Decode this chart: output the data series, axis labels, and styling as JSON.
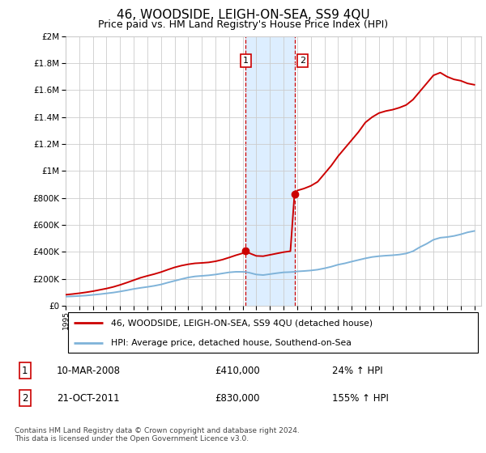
{
  "title": "46, WOODSIDE, LEIGH-ON-SEA, SS9 4QU",
  "subtitle": "Price paid vs. HM Land Registry's House Price Index (HPI)",
  "title_fontsize": 11,
  "subtitle_fontsize": 9,
  "legend_line1": "46, WOODSIDE, LEIGH-ON-SEA, SS9 4QU (detached house)",
  "legend_line2": "HPI: Average price, detached house, Southend-on-Sea",
  "footnote": "Contains HM Land Registry data © Crown copyright and database right 2024.\nThis data is licensed under the Open Government Licence v3.0.",
  "sale1_label": "10-MAR-2008",
  "sale2_label": "21-OCT-2011",
  "sale1_price": 410000,
  "sale2_price": 830000,
  "sale1_pct": "24% ↑ HPI",
  "sale2_pct": "155% ↑ HPI",
  "sale1_x": 2008.19,
  "sale2_x": 2011.8,
  "red_color": "#cc0000",
  "blue_color": "#7fb3d9",
  "shade_color": "#ddeeff",
  "grid_color": "#cccccc",
  "ylim_max": 2000000,
  "xmin": 1995,
  "xmax": 2025.5,
  "hpi_years": [
    1995,
    1995.5,
    1996,
    1996.5,
    1997,
    1997.5,
    1998,
    1998.5,
    1999,
    1999.5,
    2000,
    2000.5,
    2001,
    2001.5,
    2002,
    2002.5,
    2003,
    2003.5,
    2004,
    2004.5,
    2005,
    2005.5,
    2006,
    2006.5,
    2007,
    2007.5,
    2008,
    2008.19,
    2008.5,
    2009,
    2009.5,
    2010,
    2010.5,
    2011,
    2011.5,
    2011.8,
    2012,
    2012.5,
    2013,
    2013.5,
    2014,
    2014.5,
    2015,
    2015.5,
    2016,
    2016.5,
    2017,
    2017.5,
    2018,
    2018.5,
    2019,
    2019.5,
    2020,
    2020.5,
    2021,
    2021.5,
    2022,
    2022.5,
    2023,
    2023.5,
    2024,
    2024.5,
    2025
  ],
  "hpi_vals": [
    68000,
    70000,
    73000,
    76000,
    81000,
    86000,
    92000,
    98000,
    106000,
    115000,
    125000,
    133000,
    140000,
    148000,
    158000,
    172000,
    185000,
    198000,
    210000,
    218000,
    222000,
    226000,
    232000,
    240000,
    248000,
    252000,
    252000,
    251000,
    245000,
    232000,
    228000,
    235000,
    242000,
    248000,
    250000,
    252000,
    255000,
    258000,
    262000,
    268000,
    278000,
    290000,
    305000,
    315000,
    328000,
    340000,
    352000,
    362000,
    368000,
    372000,
    375000,
    380000,
    388000,
    405000,
    435000,
    460000,
    490000,
    505000,
    510000,
    518000,
    530000,
    545000,
    555000
  ],
  "prop_years": [
    1995,
    1995.5,
    1996,
    1996.5,
    1997,
    1997.5,
    1998,
    1998.5,
    1999,
    1999.5,
    2000,
    2000.5,
    2001,
    2001.5,
    2002,
    2002.5,
    2003,
    2003.5,
    2004,
    2004.5,
    2005,
    2005.5,
    2006,
    2006.5,
    2007,
    2007.5,
    2008,
    2008.19,
    2008.5,
    2009,
    2009.5,
    2010,
    2010.5,
    2011,
    2011.5,
    2011.8,
    2012,
    2012.5,
    2013,
    2013.5,
    2014,
    2014.5,
    2015,
    2015.5,
    2016,
    2016.5,
    2017,
    2017.5,
    2018,
    2018.5,
    2019,
    2019.5,
    2020,
    2020.5,
    2021,
    2021.5,
    2022,
    2022.5,
    2023,
    2023.5,
    2024,
    2024.5,
    2025
  ],
  "prop_vals": [
    82000,
    87000,
    93000,
    100000,
    108000,
    118000,
    128000,
    140000,
    155000,
    172000,
    190000,
    208000,
    222000,
    235000,
    250000,
    268000,
    285000,
    298000,
    308000,
    315000,
    318000,
    322000,
    330000,
    342000,
    358000,
    375000,
    390000,
    410000,
    390000,
    370000,
    368000,
    378000,
    388000,
    398000,
    405000,
    830000,
    855000,
    870000,
    890000,
    920000,
    980000,
    1040000,
    1110000,
    1170000,
    1230000,
    1290000,
    1360000,
    1400000,
    1430000,
    1445000,
    1455000,
    1470000,
    1490000,
    1530000,
    1590000,
    1650000,
    1710000,
    1730000,
    1700000,
    1680000,
    1670000,
    1650000,
    1640000
  ]
}
